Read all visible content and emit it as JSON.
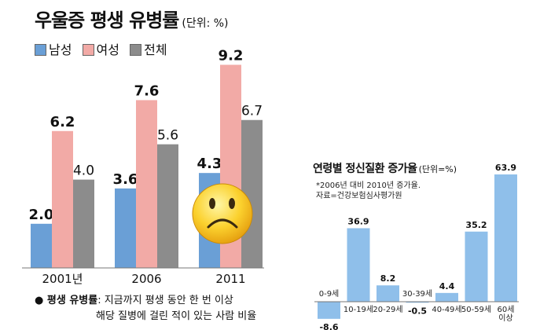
{
  "chart_data": [
    {
      "type": "bar",
      "title": "우울증 평생 유병률",
      "unit": "(단위: %)",
      "categories": [
        "2001년",
        "2006",
        "2011"
      ],
      "series": [
        {
          "name": "남성",
          "values": [
            2.0,
            3.6,
            4.3
          ],
          "color": "#6a9fd6"
        },
        {
          "name": "여성",
          "values": [
            6.2,
            7.6,
            9.2
          ],
          "color": "#f2aaa6"
        },
        {
          "name": "전체",
          "values": [
            4.0,
            5.6,
            6.7
          ],
          "color": "#8c8c8c"
        }
      ],
      "value_labels": [
        [
          "2.0",
          "6.2",
          "4.0"
        ],
        [
          "3.6",
          "7.6",
          "5.6"
        ],
        [
          "4.3",
          "9.2",
          "6.7"
        ]
      ],
      "ylim": [
        0,
        10
      ],
      "grid": false,
      "legend": "top-left",
      "footnote": {
        "key": "● 평생 유병률",
        "line1": ": 지금까지 평생 동안 한 번 이상",
        "line2": "해당 질병에 걸린 적이 있는 사람 비율"
      }
    },
    {
      "type": "bar",
      "title": "연령별 정신질환 증가율",
      "unit": "(단위=%)",
      "notes": [
        "*2006년 대비 2010년 증가율.",
        "자료=건강보험심사평가원"
      ],
      "categories": [
        "0-9세",
        "10-19세",
        "20-29세",
        "30-39세",
        "40-49세",
        "50-59세",
        "60세 이상"
      ],
      "values": [
        -8.6,
        36.9,
        8.2,
        -0.5,
        4.4,
        35.2,
        63.9
      ],
      "value_labels": [
        "-8.6",
        "36.9",
        "8.2",
        "-0.5",
        "4.4",
        "35.2",
        "63.9"
      ],
      "color": "#8fbfea",
      "ylim": [
        -10,
        65
      ],
      "grid": false
    }
  ],
  "icons": {
    "decoration": "sad-face-emoji-icon"
  }
}
